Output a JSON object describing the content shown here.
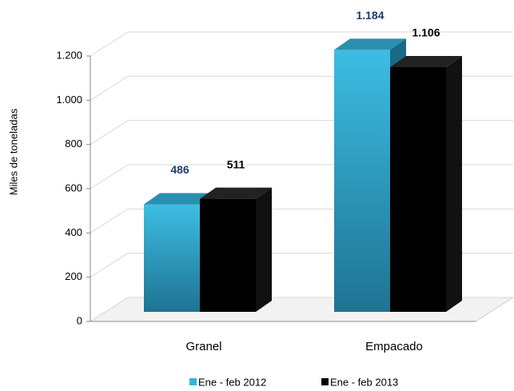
{
  "chart_data": {
    "type": "bar",
    "y_label": "Miles de toneladas",
    "categories": [
      "Granel",
      "Empacado"
    ],
    "series": [
      {
        "name": "Ene - feb 2012",
        "color": "#35b4da",
        "label_color": "#1f3d6b",
        "values": [
          486,
          1184
        ],
        "value_labels": [
          "486",
          "1.184"
        ]
      },
      {
        "name": "Ene - feb 2013",
        "color": "#000000",
        "label_color": "#000000",
        "values": [
          511,
          1106
        ],
        "value_labels": [
          "511",
          "1.106"
        ]
      }
    ],
    "ylim": [
      0,
      1200
    ],
    "yticks": [
      0,
      200,
      400,
      600,
      800,
      {
        "value": 1000,
        "label": "1.000"
      },
      {
        "value": 1200,
        "label": "1.200"
      }
    ],
    "grid": true,
    "legend": "bottom"
  }
}
